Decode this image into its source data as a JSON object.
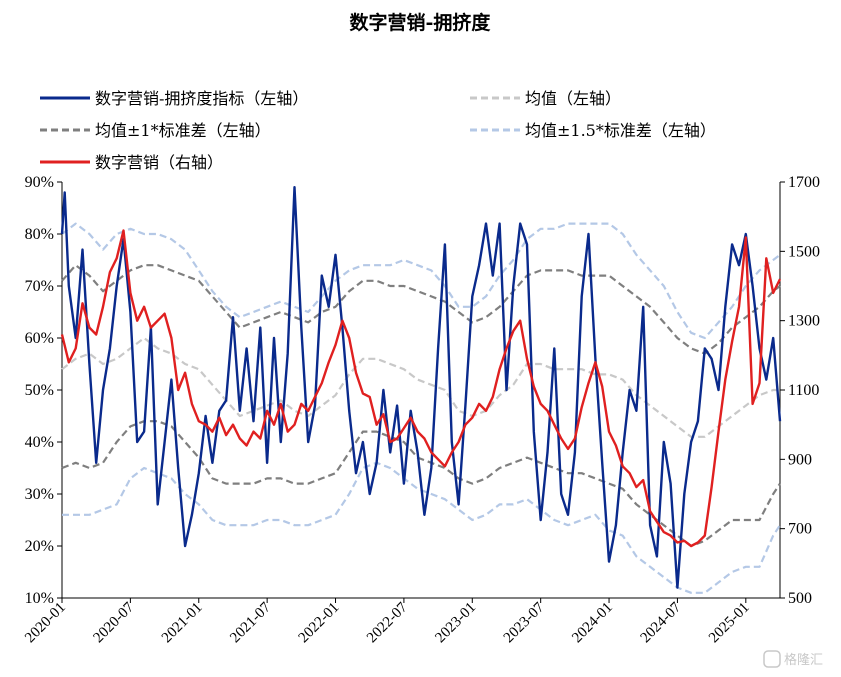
{
  "chart_data": {
    "type": "line",
    "title": "数字营销-拥挤度",
    "left_axis": {
      "min": 10,
      "max": 90,
      "ticks": [
        "10%",
        "20%",
        "30%",
        "40%",
        "50%",
        "60%",
        "70%",
        "80%",
        "90%"
      ]
    },
    "right_axis": {
      "min": 500,
      "max": 1700,
      "ticks": [
        "500",
        "700",
        "900",
        "1100",
        "1300",
        "1500",
        "1700"
      ]
    },
    "x_range": [
      "2020-01",
      "2025-04"
    ],
    "x_ticks": [
      "2020-01",
      "2020-07",
      "2021-01",
      "2021-07",
      "2022-01",
      "2022-07",
      "2023-01",
      "2023-07",
      "2024-01",
      "2024-07",
      "2025-01"
    ],
    "legend": [
      {
        "key": "crowd",
        "label": "数字营销-拥挤度指标（左轴）",
        "color": "#0a2a8c"
      },
      {
        "key": "mean",
        "label": "均值（左轴）",
        "color": "#c8c8c8"
      },
      {
        "key": "sd1",
        "label": "均值±1*标准差（左轴）",
        "color": "#7f7f7f"
      },
      {
        "key": "sd15",
        "label": "均值±1.5*标准差（左轴）",
        "color": "#b4c8e6"
      },
      {
        "key": "index",
        "label": "数字营销（右轴）",
        "color": "#e02020"
      }
    ],
    "series": [
      {
        "name": "数字营销-拥挤度指标（左轴）",
        "axis": "left",
        "color": "#0a2a8c",
        "x": [
          2020.0,
          2020.02,
          2020.05,
          2020.1,
          2020.15,
          2020.2,
          2020.25,
          2020.3,
          2020.35,
          2020.4,
          2020.45,
          2020.5,
          2020.55,
          2020.6,
          2020.65,
          2020.7,
          2020.75,
          2020.8,
          2020.85,
          2020.9,
          2020.95,
          2021.0,
          2021.05,
          2021.1,
          2021.15,
          2021.2,
          2021.25,
          2021.3,
          2021.35,
          2021.4,
          2021.45,
          2021.5,
          2021.55,
          2021.6,
          2021.65,
          2021.7,
          2021.75,
          2021.8,
          2021.85,
          2021.9,
          2021.95,
          2022.0,
          2022.05,
          2022.1,
          2022.15,
          2022.2,
          2022.25,
          2022.3,
          2022.35,
          2022.4,
          2022.45,
          2022.5,
          2022.55,
          2022.6,
          2022.65,
          2022.7,
          2022.75,
          2022.8,
          2022.85,
          2022.9,
          2022.95,
          2023.0,
          2023.05,
          2023.1,
          2023.15,
          2023.2,
          2023.25,
          2023.3,
          2023.35,
          2023.4,
          2023.45,
          2023.5,
          2023.55,
          2023.6,
          2023.65,
          2023.7,
          2023.75,
          2023.8,
          2023.85,
          2023.9,
          2023.95,
          2024.0,
          2024.05,
          2024.1,
          2024.15,
          2024.2,
          2024.25,
          2024.3,
          2024.35,
          2024.4,
          2024.45,
          2024.5,
          2024.55,
          2024.6,
          2024.65,
          2024.7,
          2024.75,
          2024.8,
          2024.85,
          2024.9,
          2024.95,
          2025.0,
          2025.05,
          2025.1,
          2025.15,
          2025.2,
          2025.25
        ],
        "values": [
          80,
          88,
          70,
          60,
          77,
          55,
          36,
          50,
          58,
          70,
          79,
          65,
          40,
          42,
          62,
          28,
          40,
          52,
          35,
          20,
          26,
          34,
          45,
          36,
          46,
          48,
          64,
          46,
          58,
          44,
          62,
          36,
          60,
          40,
          57,
          89,
          62,
          40,
          47,
          72,
          66,
          76,
          62,
          46,
          34,
          40,
          30,
          36,
          50,
          38,
          47,
          32,
          46,
          38,
          26,
          35,
          58,
          78,
          40,
          28,
          47,
          68,
          74,
          82,
          72,
          82,
          50,
          70,
          82,
          78,
          42,
          25,
          38,
          58,
          30,
          26,
          38,
          68,
          80,
          56,
          36,
          17,
          24,
          38,
          50,
          46,
          66,
          24,
          18,
          40,
          32,
          12,
          30,
          40,
          44,
          58,
          56,
          50,
          66,
          78,
          74,
          80,
          70,
          58,
          52,
          60,
          44
        ]
      },
      {
        "name": "数字营销（右轴）",
        "axis": "right",
        "color": "#e02020",
        "x": [
          2020.0,
          2020.05,
          2020.1,
          2020.15,
          2020.2,
          2020.25,
          2020.3,
          2020.35,
          2020.4,
          2020.45,
          2020.5,
          2020.55,
          2020.6,
          2020.65,
          2020.7,
          2020.75,
          2020.8,
          2020.85,
          2020.9,
          2020.95,
          2021.0,
          2021.05,
          2021.1,
          2021.15,
          2021.2,
          2021.25,
          2021.3,
          2021.35,
          2021.4,
          2021.45,
          2021.5,
          2021.55,
          2021.6,
          2021.65,
          2021.7,
          2021.75,
          2021.8,
          2021.85,
          2021.9,
          2021.95,
          2022.0,
          2022.05,
          2022.1,
          2022.15,
          2022.2,
          2022.25,
          2022.3,
          2022.35,
          2022.4,
          2022.45,
          2022.5,
          2022.55,
          2022.6,
          2022.65,
          2022.7,
          2022.75,
          2022.8,
          2022.85,
          2022.9,
          2022.95,
          2023.0,
          2023.05,
          2023.1,
          2023.15,
          2023.2,
          2023.25,
          2023.3,
          2023.35,
          2023.4,
          2023.45,
          2023.5,
          2023.55,
          2023.6,
          2023.65,
          2023.7,
          2023.75,
          2023.8,
          2023.85,
          2023.9,
          2023.95,
          2024.0,
          2024.05,
          2024.1,
          2024.15,
          2024.2,
          2024.25,
          2024.3,
          2024.35,
          2024.4,
          2024.45,
          2024.5,
          2024.55,
          2024.6,
          2024.65,
          2024.7,
          2024.75,
          2024.8,
          2024.85,
          2024.9,
          2024.95,
          2025.0,
          2025.05,
          2025.1,
          2025.15,
          2025.2,
          2025.25
        ],
        "values": [
          1260,
          1180,
          1220,
          1350,
          1280,
          1260,
          1340,
          1440,
          1480,
          1560,
          1380,
          1300,
          1340,
          1280,
          1300,
          1320,
          1250,
          1100,
          1150,
          1060,
          1010,
          1000,
          980,
          1020,
          970,
          1000,
          960,
          940,
          980,
          960,
          1040,
          1000,
          1060,
          980,
          1000,
          1060,
          1040,
          1080,
          1120,
          1180,
          1230,
          1300,
          1250,
          1150,
          1090,
          1080,
          1000,
          1030,
          950,
          960,
          990,
          1020,
          980,
          960,
          920,
          900,
          880,
          920,
          950,
          1000,
          1020,
          1060,
          1040,
          1080,
          1160,
          1220,
          1270,
          1300,
          1190,
          1110,
          1060,
          1040,
          1000,
          960,
          930,
          960,
          1050,
          1120,
          1180,
          1110,
          980,
          940,
          880,
          860,
          820,
          840,
          750,
          720,
          690,
          680,
          660,
          665,
          650,
          660,
          680,
          820,
          980,
          1130,
          1240,
          1340,
          1540,
          1060,
          1120,
          1480,
          1380,
          1420
        ]
      },
      {
        "name": "均值（左轴）",
        "axis": "left",
        "color": "#c8c8c8",
        "x": [
          2020.0,
          2020.1,
          2020.2,
          2020.3,
          2020.4,
          2020.5,
          2020.6,
          2020.7,
          2020.8,
          2020.9,
          2021.0,
          2021.1,
          2021.2,
          2021.3,
          2021.4,
          2021.5,
          2021.6,
          2021.7,
          2021.8,
          2021.9,
          2022.0,
          2022.1,
          2022.2,
          2022.3,
          2022.4,
          2022.5,
          2022.6,
          2022.7,
          2022.8,
          2022.9,
          2023.0,
          2023.1,
          2023.2,
          2023.3,
          2023.4,
          2023.5,
          2023.6,
          2023.7,
          2023.8,
          2023.9,
          2024.0,
          2024.1,
          2024.2,
          2024.3,
          2024.4,
          2024.5,
          2024.6,
          2024.7,
          2024.8,
          2024.9,
          2025.0,
          2025.1,
          2025.2,
          2025.25
        ],
        "values": [
          54,
          56,
          57,
          55,
          56,
          58,
          60,
          58,
          57,
          55,
          54,
          51,
          48,
          45,
          46,
          47,
          48,
          46,
          45,
          47,
          49,
          53,
          56,
          56,
          55,
          54,
          52,
          51,
          50,
          46,
          45,
          46,
          49,
          51,
          55,
          55,
          54,
          54,
          54,
          53,
          53,
          52,
          49,
          47,
          45,
          43,
          41,
          41,
          43,
          45,
          47,
          49,
          50,
          50
        ]
      },
      {
        "name": "均值+1*标准差",
        "axis": "left",
        "color": "#7f7f7f",
        "x": [
          2020.0,
          2020.1,
          2020.2,
          2020.3,
          2020.4,
          2020.5,
          2020.6,
          2020.7,
          2020.8,
          2020.9,
          2021.0,
          2021.1,
          2021.2,
          2021.3,
          2021.4,
          2021.5,
          2021.6,
          2021.7,
          2021.8,
          2021.9,
          2022.0,
          2022.1,
          2022.2,
          2022.3,
          2022.4,
          2022.5,
          2022.6,
          2022.7,
          2022.8,
          2022.9,
          2023.0,
          2023.1,
          2023.2,
          2023.3,
          2023.4,
          2023.5,
          2023.6,
          2023.7,
          2023.8,
          2023.9,
          2024.0,
          2024.1,
          2024.2,
          2024.3,
          2024.4,
          2024.5,
          2024.6,
          2024.7,
          2024.8,
          2024.9,
          2025.0,
          2025.1,
          2025.2,
          2025.25
        ],
        "values": [
          71,
          74,
          72,
          69,
          71,
          73,
          74,
          74,
          73,
          72,
          71,
          68,
          65,
          62,
          63,
          64,
          65,
          64,
          63,
          65,
          66,
          69,
          71,
          71,
          70,
          70,
          69,
          68,
          67,
          65,
          63,
          64,
          66,
          69,
          72,
          73,
          73,
          73,
          72,
          72,
          72,
          70,
          68,
          66,
          63,
          60,
          58,
          57,
          59,
          62,
          64,
          66,
          69,
          70
        ]
      },
      {
        "name": "均值-1*标准差",
        "axis": "left",
        "color": "#7f7f7f",
        "x": [
          2020.0,
          2020.1,
          2020.2,
          2020.3,
          2020.4,
          2020.5,
          2020.6,
          2020.7,
          2020.8,
          2020.9,
          2021.0,
          2021.1,
          2021.2,
          2021.3,
          2021.4,
          2021.5,
          2021.6,
          2021.7,
          2021.8,
          2021.9,
          2022.0,
          2022.1,
          2022.2,
          2022.3,
          2022.4,
          2022.5,
          2022.6,
          2022.7,
          2022.8,
          2022.9,
          2023.0,
          2023.1,
          2023.2,
          2023.3,
          2023.4,
          2023.5,
          2023.6,
          2023.7,
          2023.8,
          2023.9,
          2024.0,
          2024.1,
          2024.2,
          2024.3,
          2024.4,
          2024.5,
          2024.6,
          2024.7,
          2024.8,
          2024.9,
          2025.0,
          2025.1,
          2025.2,
          2025.25
        ],
        "values": [
          35,
          36,
          35,
          36,
          40,
          43,
          44,
          44,
          43,
          40,
          37,
          33,
          32,
          32,
          32,
          33,
          33,
          32,
          32,
          33,
          34,
          38,
          42,
          42,
          41,
          40,
          37,
          36,
          35,
          33,
          32,
          33,
          35,
          36,
          37,
          36,
          35,
          34,
          34,
          33,
          32,
          31,
          28,
          26,
          24,
          22,
          20,
          21,
          23,
          25,
          25,
          25,
          30,
          32
        ]
      },
      {
        "name": "均值+1.5*标准差",
        "axis": "left",
        "color": "#b4c8e6",
        "x": [
          2020.0,
          2020.1,
          2020.2,
          2020.3,
          2020.4,
          2020.5,
          2020.6,
          2020.7,
          2020.8,
          2020.9,
          2021.0,
          2021.1,
          2021.2,
          2021.3,
          2021.4,
          2021.5,
          2021.6,
          2021.7,
          2021.8,
          2021.9,
          2022.0,
          2022.1,
          2022.2,
          2022.3,
          2022.4,
          2022.5,
          2022.6,
          2022.7,
          2022.8,
          2022.9,
          2023.0,
          2023.1,
          2023.2,
          2023.3,
          2023.4,
          2023.5,
          2023.6,
          2023.7,
          2023.8,
          2023.9,
          2024.0,
          2024.1,
          2024.2,
          2024.3,
          2024.4,
          2024.5,
          2024.6,
          2024.7,
          2024.8,
          2024.9,
          2025.0,
          2025.1,
          2025.2,
          2025.25
        ],
        "values": [
          80,
          82,
          80,
          77,
          80,
          81,
          80,
          80,
          79,
          77,
          73,
          69,
          66,
          64,
          65,
          66,
          67,
          66,
          65,
          68,
          71,
          73,
          74,
          74,
          74,
          75,
          74,
          73,
          70,
          66,
          66,
          68,
          72,
          75,
          79,
          81,
          81,
          82,
          82,
          82,
          82,
          80,
          76,
          73,
          70,
          65,
          61,
          60,
          63,
          66,
          70,
          73,
          75,
          76
        ]
      },
      {
        "name": "均值-1.5*标准差",
        "axis": "left",
        "color": "#b4c8e6",
        "x": [
          2020.0,
          2020.1,
          2020.2,
          2020.3,
          2020.4,
          2020.5,
          2020.6,
          2020.7,
          2020.8,
          2020.9,
          2021.0,
          2021.1,
          2021.2,
          2021.3,
          2021.4,
          2021.5,
          2021.6,
          2021.7,
          2021.8,
          2021.9,
          2022.0,
          2022.1,
          2022.2,
          2022.3,
          2022.4,
          2022.5,
          2022.6,
          2022.7,
          2022.8,
          2022.9,
          2023.0,
          2023.1,
          2023.2,
          2023.3,
          2023.4,
          2023.5,
          2023.6,
          2023.7,
          2023.8,
          2023.9,
          2024.0,
          2024.1,
          2024.2,
          2024.3,
          2024.4,
          2024.5,
          2024.6,
          2024.7,
          2024.8,
          2024.9,
          2025.0,
          2025.1,
          2025.2,
          2025.25
        ],
        "values": [
          26,
          26,
          26,
          27,
          28,
          33,
          35,
          34,
          33,
          30,
          28,
          25,
          24,
          24,
          24,
          25,
          25,
          24,
          24,
          25,
          26,
          30,
          35,
          36,
          35,
          33,
          31,
          30,
          29,
          27,
          25,
          26,
          28,
          28,
          29,
          27,
          25,
          24,
          25,
          26,
          23,
          22,
          18,
          16,
          14,
          12,
          11,
          11,
          13,
          15,
          16,
          16,
          22,
          24
        ]
      }
    ]
  },
  "watermark": {
    "text": "格隆汇"
  }
}
